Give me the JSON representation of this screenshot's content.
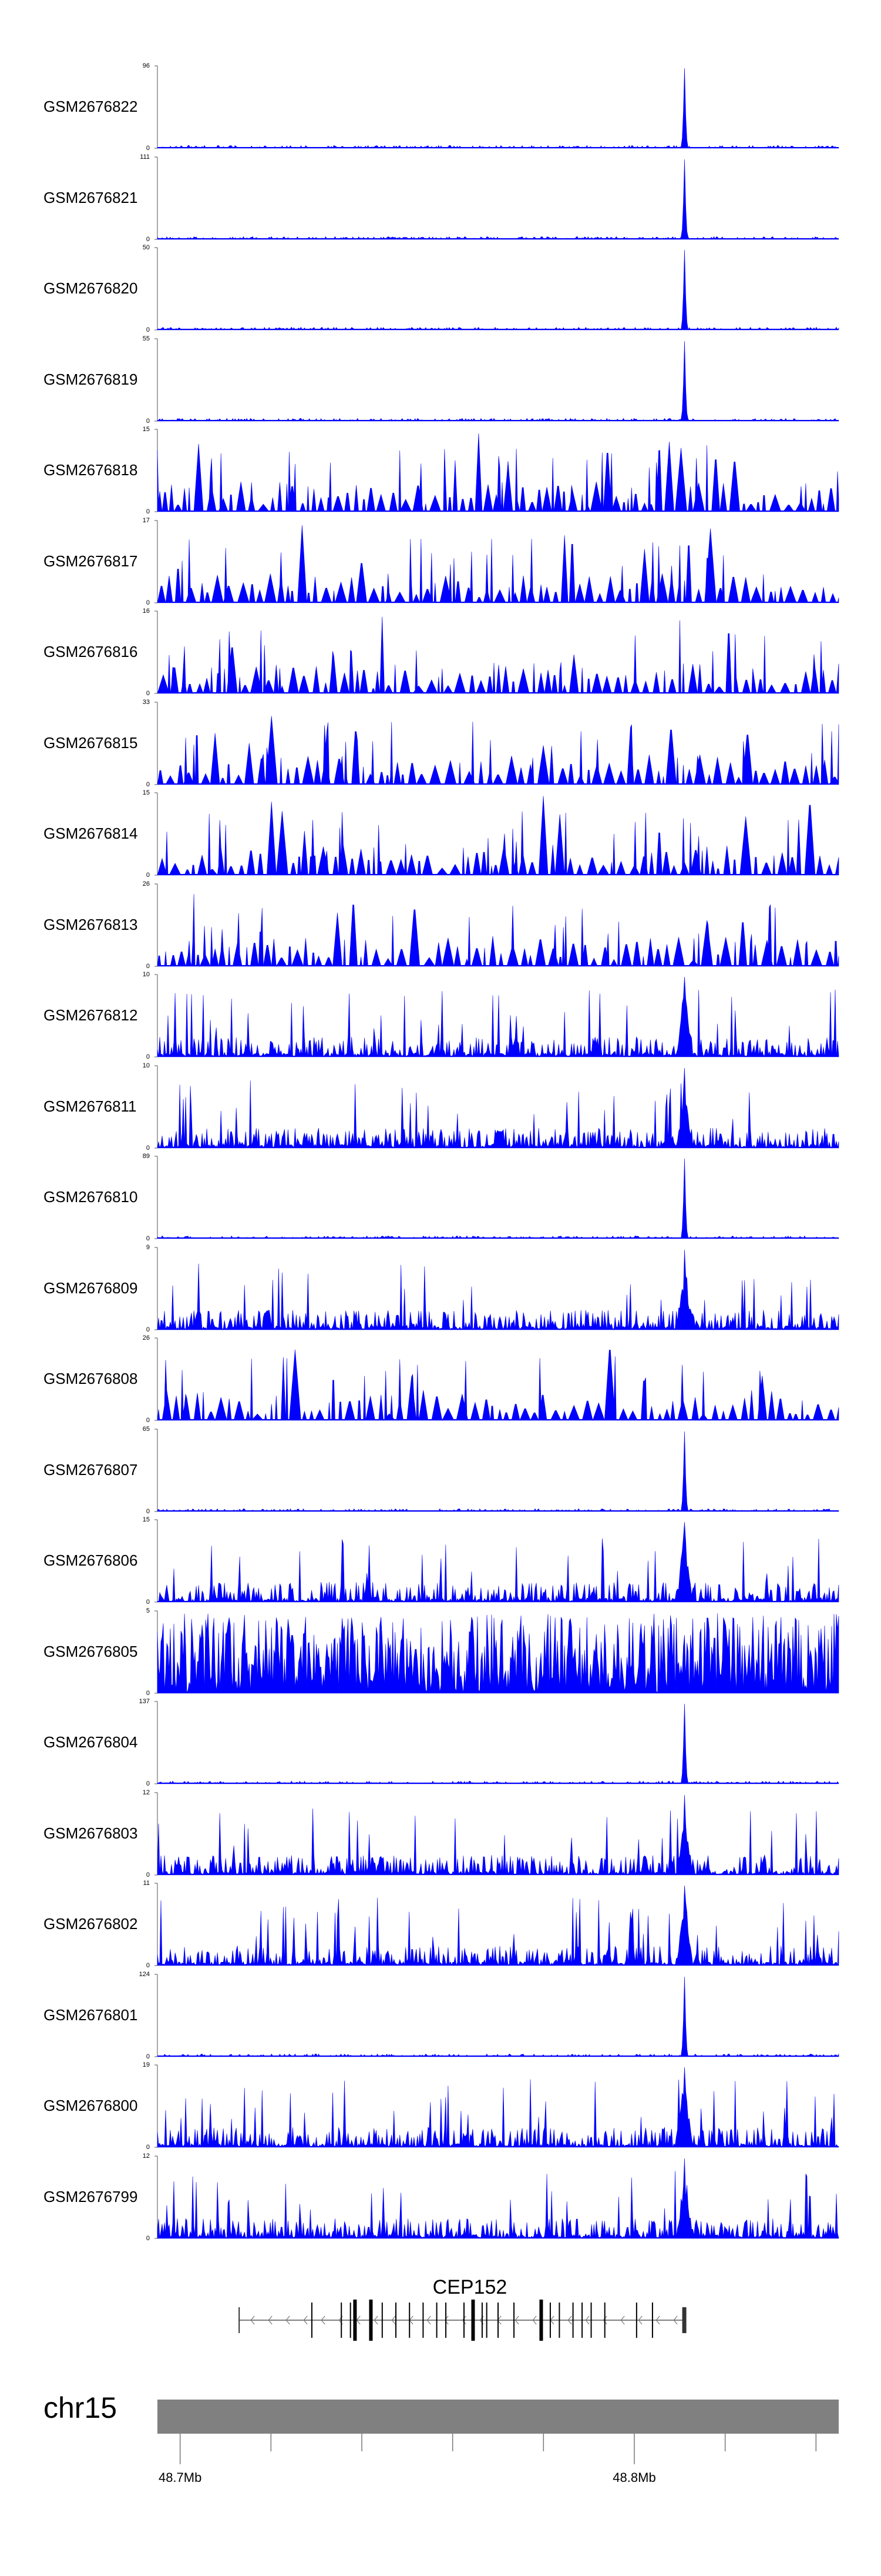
{
  "chart_data": {
    "type": "area",
    "color": "#0000ff",
    "tracks": [
      {
        "name": "GSM2676822",
        "ymax": 96,
        "pattern": "peak"
      },
      {
        "name": "GSM2676821",
        "ymax": 111,
        "pattern": "peak"
      },
      {
        "name": "GSM2676820",
        "ymax": 50,
        "pattern": "peak"
      },
      {
        "name": "GSM2676819",
        "ymax": 55,
        "pattern": "peak"
      },
      {
        "name": "GSM2676818",
        "ymax": 15,
        "pattern": "broad"
      },
      {
        "name": "GSM2676817",
        "ymax": 17,
        "pattern": "broad"
      },
      {
        "name": "GSM2676816",
        "ymax": 16,
        "pattern": "broad"
      },
      {
        "name": "GSM2676815",
        "ymax": 33,
        "pattern": "broad"
      },
      {
        "name": "GSM2676814",
        "ymax": 15,
        "pattern": "broad"
      },
      {
        "name": "GSM2676813",
        "ymax": 26,
        "pattern": "broad"
      },
      {
        "name": "GSM2676812",
        "ymax": 10,
        "pattern": "dense"
      },
      {
        "name": "GSM2676811",
        "ymax": 10,
        "pattern": "dense"
      },
      {
        "name": "GSM2676810",
        "ymax": 89,
        "pattern": "peak"
      },
      {
        "name": "GSM2676809",
        "ymax": 9,
        "pattern": "dense"
      },
      {
        "name": "GSM2676808",
        "ymax": 26,
        "pattern": "broad"
      },
      {
        "name": "GSM2676807",
        "ymax": 65,
        "pattern": "peak"
      },
      {
        "name": "GSM2676806",
        "ymax": 15,
        "pattern": "dense"
      },
      {
        "name": "GSM2676805",
        "ymax": 5,
        "pattern": "noise"
      },
      {
        "name": "GSM2676804",
        "ymax": 137,
        "pattern": "peak"
      },
      {
        "name": "GSM2676803",
        "ymax": 12,
        "pattern": "dense"
      },
      {
        "name": "GSM2676802",
        "ymax": 11,
        "pattern": "dense"
      },
      {
        "name": "GSM2676801",
        "ymax": 124,
        "pattern": "peak"
      },
      {
        "name": "GSM2676800",
        "ymax": 19,
        "pattern": "dense"
      },
      {
        "name": "GSM2676799",
        "ymax": 12,
        "pattern": "dense"
      }
    ],
    "ymin_label": "0",
    "gene": {
      "name": "CEP152",
      "strand": "-"
    },
    "chromosome": "chr15",
    "xrange_mb": [
      48.695,
      48.845
    ],
    "peak_position_mb": 48.811,
    "axis_ticks": [
      {
        "label": "48.7Mb",
        "value_mb": 48.7
      },
      {
        "label": "48.8Mb",
        "value_mb": 48.8
      }
    ],
    "minor_tick_mb": [
      48.72,
      48.74,
      48.76,
      48.78,
      48.82,
      48.84
    ],
    "gene_span_mb": [
      48.713,
      48.811
    ],
    "exon_positions_mb": [
      48.713,
      48.729,
      48.7355,
      48.7375,
      48.7385,
      48.742,
      48.7445,
      48.7475,
      48.7505,
      48.7535,
      48.7565,
      48.7585,
      48.7625,
      48.7645,
      48.7665,
      48.7675,
      48.77,
      48.7735,
      48.7795,
      48.7815,
      48.7835,
      48.7865,
      48.7885,
      48.7905,
      48.7935,
      48.8005,
      48.804,
      48.811
    ]
  }
}
